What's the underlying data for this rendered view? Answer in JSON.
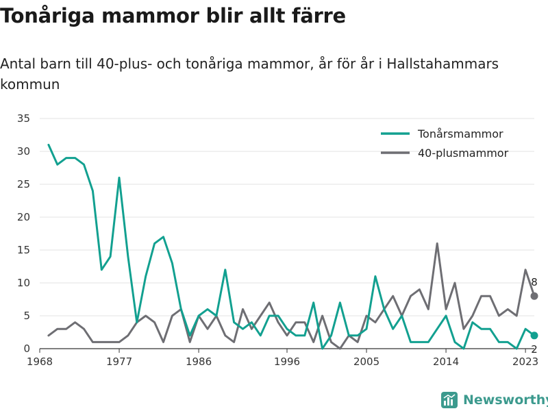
{
  "title": "Tonåriga mammor blir allt färre",
  "subtitle": "Antal barn till 40-plus- och tonåriga mammor, år för år i Hallstahammars kommun",
  "brand": {
    "name": "Newsworthy",
    "icon": "bar-chart-icon"
  },
  "chart_data": {
    "type": "line",
    "title": "Tonåriga mammor blir allt färre",
    "subtitle": "Antal barn till 40-plus- och tonåriga mammor, år för år i Hallstahammars kommun",
    "xlabel": "",
    "ylabel": "",
    "xlim": [
      1968,
      2024
    ],
    "ylim": [
      0,
      35
    ],
    "x_ticks": [
      1968,
      1977,
      1986,
      1996,
      2005,
      2014,
      2023
    ],
    "y_ticks": [
      0,
      5,
      10,
      15,
      20,
      25,
      30,
      35
    ],
    "grid": "horizontal",
    "legend_position": "top-right",
    "x": [
      1969,
      1970,
      1971,
      1972,
      1973,
      1974,
      1975,
      1976,
      1977,
      1978,
      1979,
      1980,
      1981,
      1982,
      1983,
      1984,
      1985,
      1986,
      1987,
      1988,
      1989,
      1990,
      1991,
      1992,
      1993,
      1994,
      1995,
      1996,
      1997,
      1998,
      1999,
      2000,
      2001,
      2002,
      2003,
      2004,
      2005,
      2006,
      2007,
      2008,
      2009,
      2010,
      2011,
      2012,
      2013,
      2014,
      2015,
      2016,
      2017,
      2018,
      2019,
      2020,
      2021,
      2022,
      2023,
      2024
    ],
    "series": [
      {
        "name": "Tonårsmammor",
        "color": "#12a090",
        "values": [
          31,
          28,
          29,
          29,
          28,
          24,
          12,
          14,
          26,
          14,
          4,
          11,
          16,
          17,
          13,
          6,
          2,
          5,
          6,
          5,
          12,
          4,
          3,
          4,
          2,
          5,
          5,
          3,
          2,
          2,
          7,
          0,
          2,
          7,
          2,
          2,
          3,
          11,
          6,
          3,
          5,
          1,
          1,
          1,
          3,
          5,
          1,
          0,
          4,
          3,
          3,
          1,
          1,
          0,
          3,
          2
        ],
        "end_label": "2"
      },
      {
        "name": "40-plusmammor",
        "color": "#6e6e73",
        "values": [
          2,
          3,
          3,
          4,
          3,
          1,
          1,
          1,
          1,
          2,
          4,
          5,
          4,
          1,
          5,
          6,
          1,
          5,
          3,
          5,
          2,
          1,
          6,
          3,
          5,
          7,
          4,
          2,
          4,
          4,
          1,
          5,
          1,
          0,
          2,
          1,
          5,
          4,
          6,
          8,
          5,
          8,
          9,
          6,
          16,
          6,
          10,
          3,
          5,
          8,
          8,
          5,
          6,
          5,
          12,
          8
        ],
        "end_label": "8"
      }
    ]
  }
}
